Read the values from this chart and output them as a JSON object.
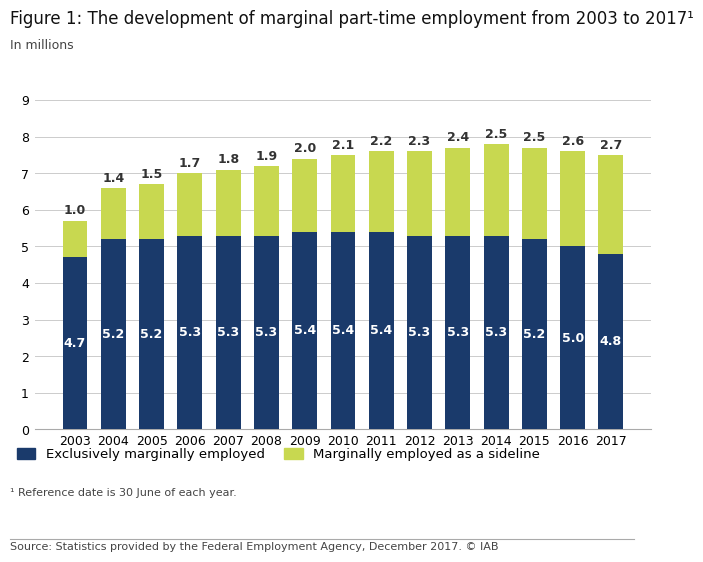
{
  "years": [
    2003,
    2004,
    2005,
    2006,
    2007,
    2008,
    2009,
    2010,
    2011,
    2012,
    2013,
    2014,
    2015,
    2016,
    2017
  ],
  "exclusive": [
    4.7,
    5.2,
    5.2,
    5.3,
    5.3,
    5.3,
    5.4,
    5.4,
    5.4,
    5.3,
    5.3,
    5.3,
    5.2,
    5.0,
    4.8
  ],
  "sideline": [
    1.0,
    1.4,
    1.5,
    1.7,
    1.8,
    1.9,
    2.0,
    2.1,
    2.2,
    2.3,
    2.4,
    2.5,
    2.5,
    2.6,
    2.7
  ],
  "color_exclusive": "#1a3a6b",
  "color_sideline": "#c8d850",
  "title": "Figure 1: The development of marginal part-time employment from 2003 to 2017¹",
  "subtitle": "In millions",
  "legend_exclusive": "Exclusively marginally employed",
  "legend_sideline": "Marginally employed as a sideline",
  "footnote": "¹ Reference date is 30 June of each year.",
  "source": "Source: Statistics provided by the Federal Employment Agency, December 2017. © IAB",
  "ylim": [
    0,
    9
  ],
  "yticks": [
    0,
    1,
    2,
    3,
    4,
    5,
    6,
    7,
    8,
    9
  ],
  "background_color": "#ffffff",
  "grid_color": "#cccccc",
  "bar_width": 0.65,
  "title_fontsize": 12,
  "subtitle_fontsize": 9,
  "tick_fontsize": 9,
  "label_fontsize": 9,
  "legend_fontsize": 9.5,
  "footnote_fontsize": 8,
  "source_fontsize": 8
}
